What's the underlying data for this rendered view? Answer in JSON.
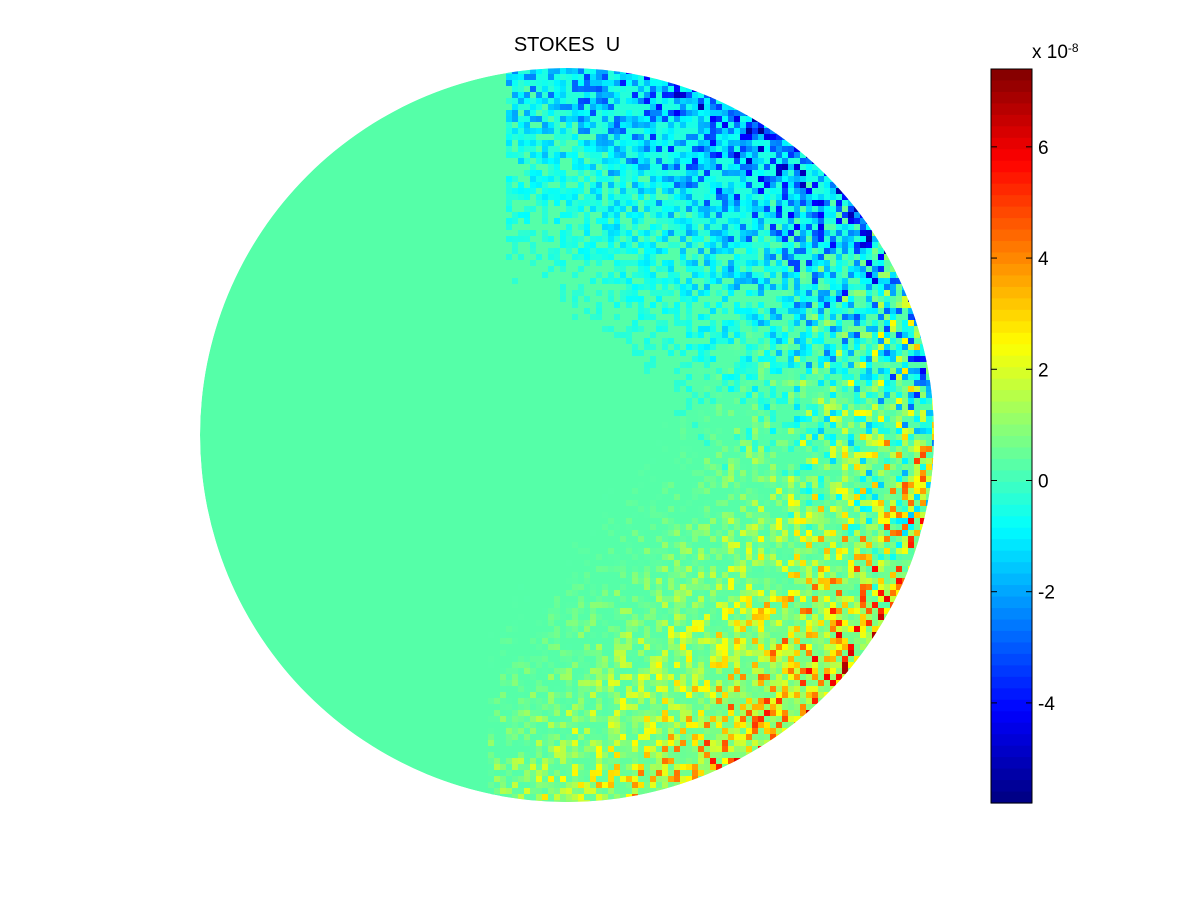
{
  "chart_data": {
    "type": "heatmap",
    "title": "STOKES  U",
    "shape": "circular disk",
    "colormap": "jet",
    "colorbar": {
      "location": "right",
      "multiplier_label": "x 10",
      "multiplier_exponent": "-8",
      "range": [
        -5.8,
        7.4
      ],
      "ticks": [
        6,
        4,
        2,
        0,
        -2,
        -4
      ],
      "tick_labels": [
        "6",
        "4",
        "2",
        "0",
        "-2",
        "-4"
      ]
    },
    "background_value": 0,
    "features": [
      {
        "region": "upper-right rim",
        "trend": "negative",
        "min_value": -5.8
      },
      {
        "region": "lower-right rim",
        "trend": "positive",
        "max_value": 7.4
      }
    ]
  }
}
